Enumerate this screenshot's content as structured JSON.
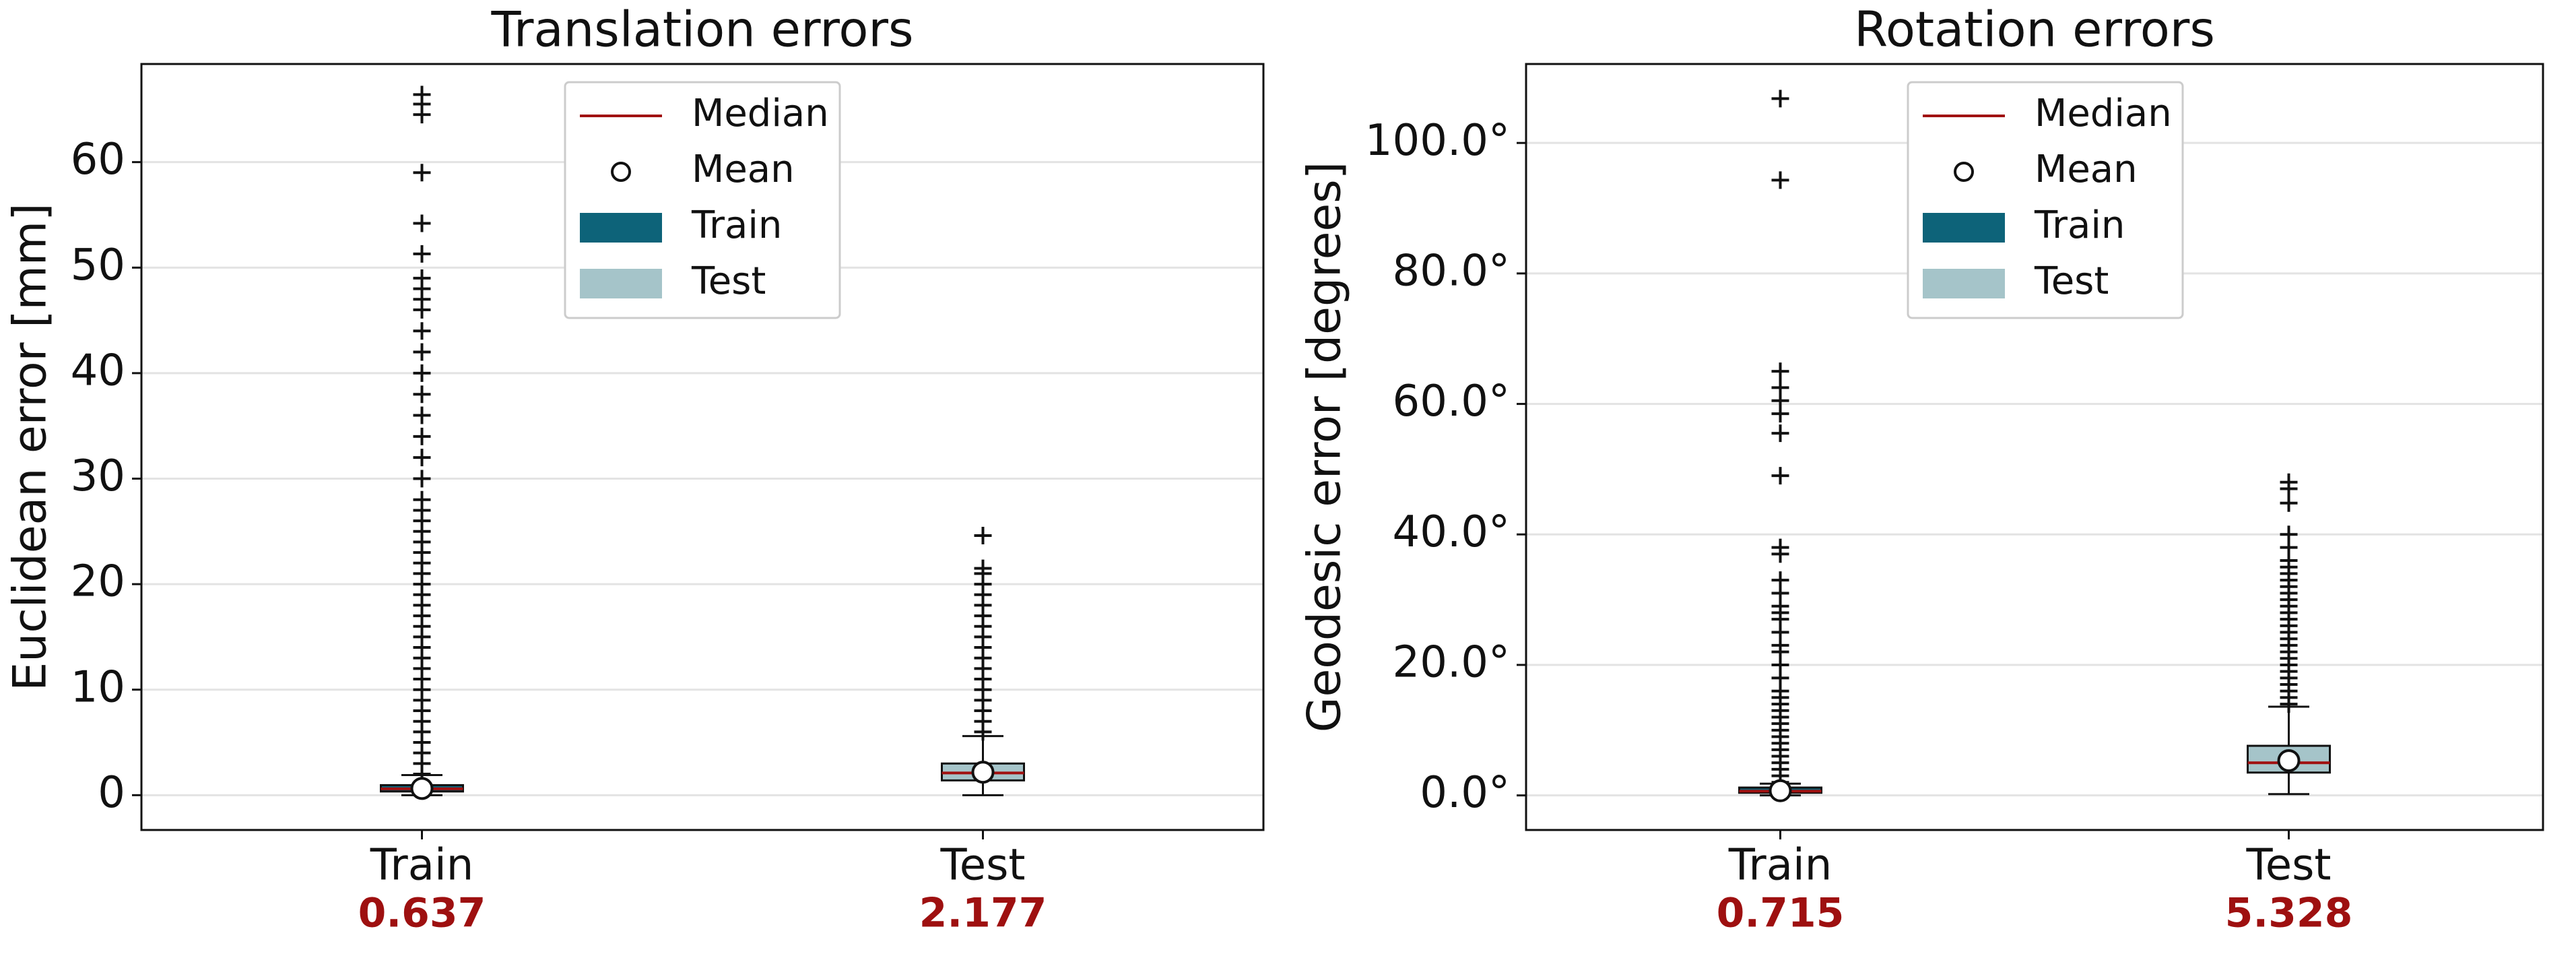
{
  "chart_data": [
    {
      "type": "box",
      "title": "Translation errors",
      "y_label": "Euclidean error [mm]",
      "ylim": [
        -3.3,
        69.3
      ],
      "yticks": [
        0,
        10,
        20,
        30,
        40,
        50,
        60
      ],
      "grid": true,
      "legend_position": "upper center",
      "median_label": "Median",
      "median_color": "#a01010",
      "mean_label": "Mean",
      "series": [
        {
          "name": "Train",
          "color": "#0d6379",
          "whislo": 0,
          "q1": 0.35,
          "median": 0.6,
          "q3": 0.95,
          "whishi": 1.9,
          "mean": 0.637,
          "fliers": [
            2,
            3,
            4,
            5,
            6,
            7,
            8,
            9,
            10,
            11,
            12,
            13,
            14,
            15,
            16,
            17,
            18,
            19,
            20,
            21,
            22,
            23,
            24,
            25,
            26,
            27,
            28,
            30,
            32,
            34,
            36,
            38,
            40,
            42,
            44,
            46,
            47,
            48,
            49,
            51.3,
            54.2,
            59,
            64.5,
            65.5,
            66.4
          ]
        },
        {
          "name": "Test",
          "color": "#a5c4c9",
          "whislo": 0,
          "q1": 1.4,
          "median": 2.1,
          "q3": 3.0,
          "whishi": 5.6,
          "mean": 2.177,
          "fliers": [
            6,
            7,
            8,
            9,
            10,
            11,
            12,
            13,
            14,
            15,
            16,
            17,
            18,
            19,
            20,
            21,
            21.5,
            24.6
          ]
        }
      ]
    },
    {
      "type": "box",
      "title": "Rotation errors",
      "y_label": "Geodesic error [degrees]",
      "ylim": [
        -5.3,
        112.1
      ],
      "yticks": [
        {
          "value": 0,
          "label": "0.0°"
        },
        {
          "value": 20,
          "label": "20.0°"
        },
        {
          "value": 40,
          "label": "40.0°"
        },
        {
          "value": 60,
          "label": "60.0°"
        },
        {
          "value": 80,
          "label": "80.0°"
        },
        {
          "value": 100,
          "label": "100.0°"
        }
      ],
      "grid": true,
      "legend_position": "upper center",
      "median_label": "Median",
      "median_color": "#a01010",
      "mean_label": "Mean",
      "series": [
        {
          "name": "Train",
          "color": "#0d6379",
          "whislo": 0,
          "q1": 0.4,
          "median": 0.65,
          "q3": 1.2,
          "whishi": 1.8,
          "mean": 0.715,
          "fliers": [
            2,
            3,
            4,
            5,
            6,
            7,
            8,
            9,
            10,
            11,
            12,
            13,
            14,
            15,
            16,
            18,
            20,
            22,
            23,
            25,
            27,
            28,
            29,
            31,
            33,
            37,
            38,
            49,
            55.5,
            58.5,
            60.5,
            62.5,
            65,
            94.3,
            106.8
          ]
        },
        {
          "name": "Test",
          "color": "#a5c4c9",
          "whislo": 0.2,
          "q1": 3.5,
          "median": 5.0,
          "q3": 7.6,
          "whishi": 13.6,
          "mean": 5.328,
          "fliers": [
            14,
            15,
            16,
            17,
            18,
            19,
            20,
            21,
            22,
            23,
            24,
            25,
            26,
            27,
            28,
            29,
            30,
            31,
            32,
            33,
            34,
            35,
            36,
            38,
            40,
            44.8,
            47,
            48
          ]
        }
      ]
    }
  ]
}
